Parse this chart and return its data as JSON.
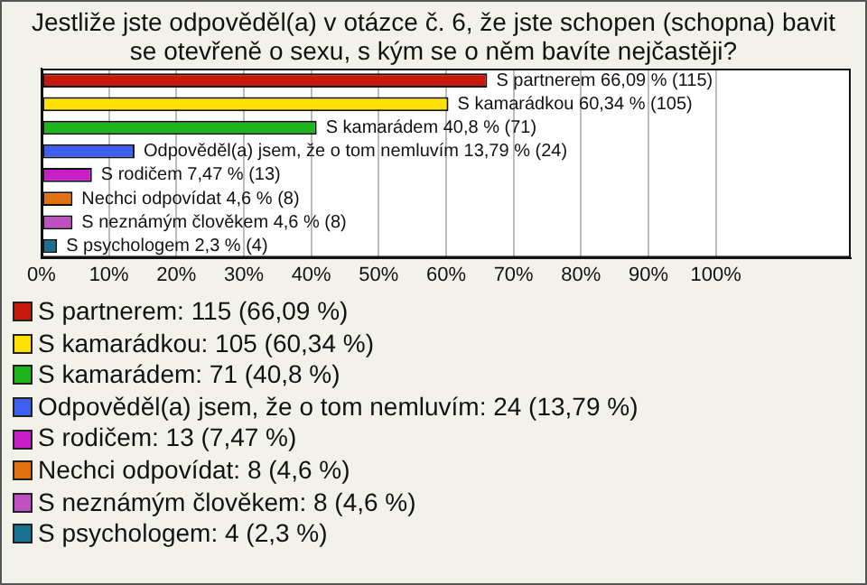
{
  "chart_data": {
    "type": "bar",
    "orientation": "horizontal",
    "stacked": true,
    "title": "Jestliže jste odpověděl(a) v otázce č. 6, že jste schopen (schopna) bavit se otevřeně o sexu, s kým se o něm bavíte nejčastěji?",
    "categories": [
      null,
      null,
      null,
      null,
      null,
      null,
      null,
      null
    ],
    "series": [
      {
        "name": "S partnerem: 115 (66,09 %)",
        "color": "#c81a0a",
        "values": [
          66.09,
          null,
          null,
          null,
          null,
          null,
          null,
          null
        ],
        "value_labels": [
          "S partnerem 66,09 % (115)",
          null,
          null,
          null,
          null,
          null,
          null,
          null
        ]
      },
      {
        "name": "S kamarádkou: 105 (60,34 %)",
        "color": "#ffe000",
        "values": [
          null,
          60.34,
          null,
          null,
          null,
          null,
          null,
          null
        ],
        "value_labels": [
          null,
          "S kamarádkou 60,34 % (105)",
          null,
          null,
          null,
          null,
          null,
          null
        ]
      },
      {
        "name": "S kamarádem: 71 (40,8 %)",
        "color": "#1eb41e",
        "values": [
          null,
          null,
          40.8,
          null,
          null,
          null,
          null,
          null
        ],
        "value_labels": [
          null,
          null,
          "S kamarádem 40,8 % (71)",
          null,
          null,
          null,
          null,
          null
        ]
      },
      {
        "name": "Odpověděl(a) jsem, že o tom nemluvím: 24 (13,79 %)",
        "color": "#3c5ff0",
        "values": [
          null,
          null,
          null,
          13.79,
          null,
          null,
          null,
          null
        ],
        "value_labels": [
          null,
          null,
          null,
          "Odpověděl(a) jsem, že o tom nemluvím 13,79 % (24)",
          null,
          null,
          null,
          null
        ]
      },
      {
        "name": "S rodičem: 13 (7,47 %)",
        "color": "#c81ec8",
        "values": [
          null,
          null,
          null,
          null,
          7.47,
          null,
          null,
          null
        ],
        "value_labels": [
          null,
          null,
          null,
          null,
          "S rodičem 7,47 % (13)",
          null,
          null,
          null
        ]
      },
      {
        "name": "Nechci odpovídat: 8 (4,6 %)",
        "color": "#e07010",
        "values": [
          null,
          null,
          null,
          null,
          null,
          4.6,
          null,
          null
        ],
        "value_labels": [
          null,
          null,
          null,
          null,
          null,
          "Nechci odpovídat 4,6 % (8)",
          null,
          null
        ]
      },
      {
        "name": "S neznámým člověkem: 8 (4,6 %)",
        "color": "#c050c0",
        "values": [
          null,
          null,
          null,
          null,
          null,
          null,
          4.6,
          null
        ],
        "value_labels": [
          null,
          null,
          null,
          null,
          null,
          null,
          "S neznámým člověkem 4,6 % (8)",
          null
        ]
      },
      {
        "name": "S psychologem: 4 (2,3 %)",
        "color": "#1a7090",
        "values": [
          null,
          null,
          null,
          null,
          null,
          null,
          null,
          2.3
        ],
        "value_labels": [
          null,
          null,
          null,
          null,
          null,
          null,
          null,
          "S psychologem 2,3 % (4)"
        ]
      }
    ],
    "xlim": [
      0,
      120
    ],
    "xticks": [
      {
        "value": 0,
        "label": "0%"
      },
      {
        "value": 10,
        "label": "10%"
      },
      {
        "value": 20,
        "label": "20%"
      },
      {
        "value": 30,
        "label": "30%"
      },
      {
        "value": 40,
        "label": "40%"
      },
      {
        "value": 50,
        "label": "50%"
      },
      {
        "value": 60,
        "label": "60%"
      },
      {
        "value": 70,
        "label": "70%"
      },
      {
        "value": 80,
        "label": "80%"
      },
      {
        "value": 90,
        "label": "90%"
      },
      {
        "value": 100,
        "label": "100%"
      }
    ],
    "grid": "x",
    "legend": "bottom",
    "tick_labels": "x"
  }
}
